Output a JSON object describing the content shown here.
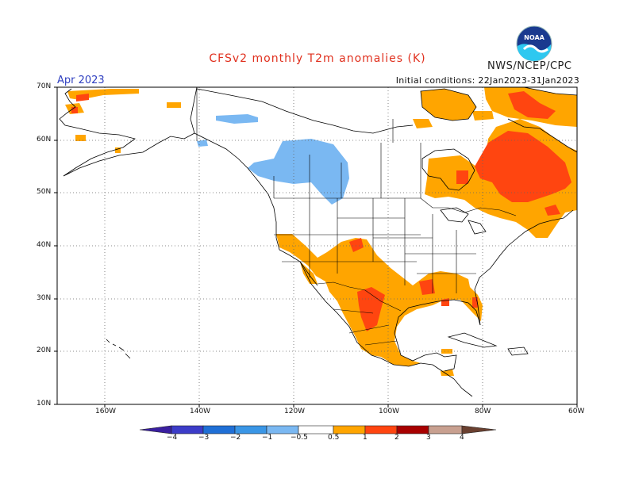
{
  "title": "CFSv2 monthly T2m anomalies (K)",
  "agency": "NWS/NCEP/CPC",
  "logo_text": "NOAA",
  "valid_month": "Apr 2023",
  "initial_conditions": "Initial conditions: 22Jan2023-31Jan2023",
  "lat_labels": [
    "70N",
    "60N",
    "50N",
    "40N",
    "30N",
    "20N",
    "10N"
  ],
  "lon_labels": [
    "160W",
    "140W",
    "120W",
    "100W",
    "80W",
    "60W"
  ],
  "colorbar": {
    "labels": [
      "−4",
      "−3",
      "−2",
      "−1",
      "−0.5",
      "0.5",
      "1",
      "2",
      "3",
      "4"
    ],
    "colors": {
      "lt_-4": "#3a1fa0",
      "-4_-3": "#3c3cc8",
      "-3_-2": "#1f6fd6",
      "-2_-1": "#3a96e6",
      "-1_-0.5": "#7ab8f2",
      "-0.5_0.5": "#ffffff",
      "0.5_1": "#ffa500",
      "1_2": "#ff4510",
      "2_3": "#a80000",
      "3_4": "#c8a090",
      "gt_4": "#6a4030"
    }
  },
  "map_extent": {
    "lon_min": -170,
    "lon_max": -60,
    "lat_min": 10,
    "lat_max": 70
  },
  "graticule": {
    "lon_step": 20,
    "lat_step": 10,
    "style": "dotted"
  }
}
